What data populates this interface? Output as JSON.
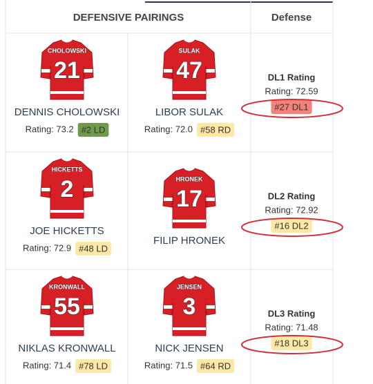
{
  "header": {
    "pairings": "DEFENSIVE PAIRINGS",
    "defense": "Defense"
  },
  "badge_colors": {
    "green": "#6f9a4c",
    "yellow": "#fde8a6",
    "red": "#f2837b"
  },
  "rows": [
    {
      "players": [
        {
          "jersey_name": "CHOLOWSKI",
          "number": "21",
          "name": "DENNIS CHOLOWSKI",
          "rating": "Rating: 73.2",
          "badge": "#2 LD",
          "badge_color": "green"
        },
        {
          "jersey_name": "SULAK",
          "number": "47",
          "name": "LIBOR SULAK",
          "rating": "Rating: 72.0",
          "badge": "#58 RD",
          "badge_color": "yellow"
        }
      ],
      "defense": {
        "title": "DL1 Rating",
        "rating": "Rating: 72.59",
        "badge": "#27 DL1",
        "badge_color": "red"
      }
    },
    {
      "players": [
        {
          "jersey_name": "HICKETTS",
          "number": "2",
          "name": "JOE HICKETTS",
          "rating": "Rating: 72.9",
          "badge": "#48 LD",
          "badge_color": "yellow"
        },
        {
          "jersey_name": "HRONEK",
          "number": "17",
          "name": "FILIP HRONEK"
        }
      ],
      "defense": {
        "title": "DL2 Rating",
        "rating": "Rating: 72.92",
        "badge": "#16 DL2",
        "badge_color": "yellow"
      }
    },
    {
      "players": [
        {
          "jersey_name": "KRONWALL",
          "number": "55",
          "name": "NIKLAS KRONWALL",
          "rating": "Rating: 71.4",
          "badge": "#78 LD",
          "badge_color": "yellow"
        },
        {
          "jersey_name": "JENSEN",
          "number": "3",
          "name": "NICK JENSEN",
          "rating": "Rating: 71.5",
          "badge": "#64 RD",
          "badge_color": "yellow"
        }
      ],
      "defense": {
        "title": "DL3 Rating",
        "rating": "Rating: 71.48",
        "badge": "#18 DL3",
        "badge_color": "yellow"
      }
    }
  ]
}
